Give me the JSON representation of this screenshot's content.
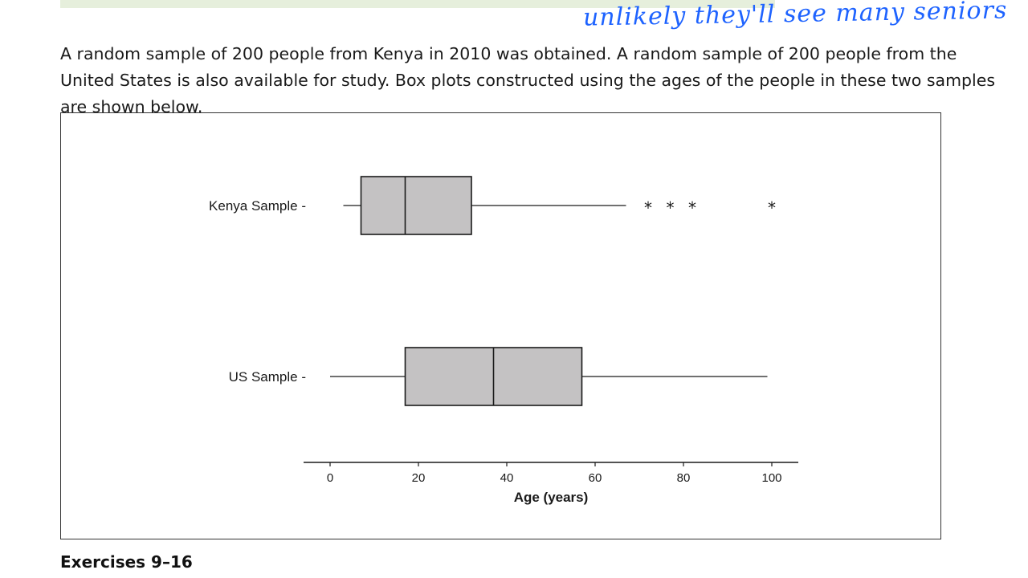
{
  "page": {
    "paragraph": "A random sample of 200 people from Kenya in 2010 was obtained.  A random sample of 200 people from the United States is also available for study.  Box plots constructed using the ages of the people in these two samples are shown below.",
    "annotation": "unlikely they'll see many seniors",
    "next_heading": "Exercises 9–16"
  },
  "colors": {
    "box_fill": "#c4c2c3",
    "ink": "#1a1a1a",
    "annotation_ink": "#1e63ff"
  },
  "chart_data": {
    "type": "boxplot",
    "title": "",
    "xlabel": "Age (years)",
    "xlim": [
      -6,
      106
    ],
    "xticks": [
      0,
      20,
      40,
      60,
      80,
      100
    ],
    "series": [
      {
        "name": "Kenya Sample",
        "whisker_low": 3,
        "q1": 7,
        "median": 17,
        "q3": 32,
        "whisker_high": 67,
        "outliers": [
          72,
          77,
          82,
          100
        ]
      },
      {
        "name": "US Sample",
        "whisker_low": 0,
        "q1": 17,
        "median": 37,
        "q3": 57,
        "whisker_high": 99,
        "outliers": []
      }
    ]
  }
}
